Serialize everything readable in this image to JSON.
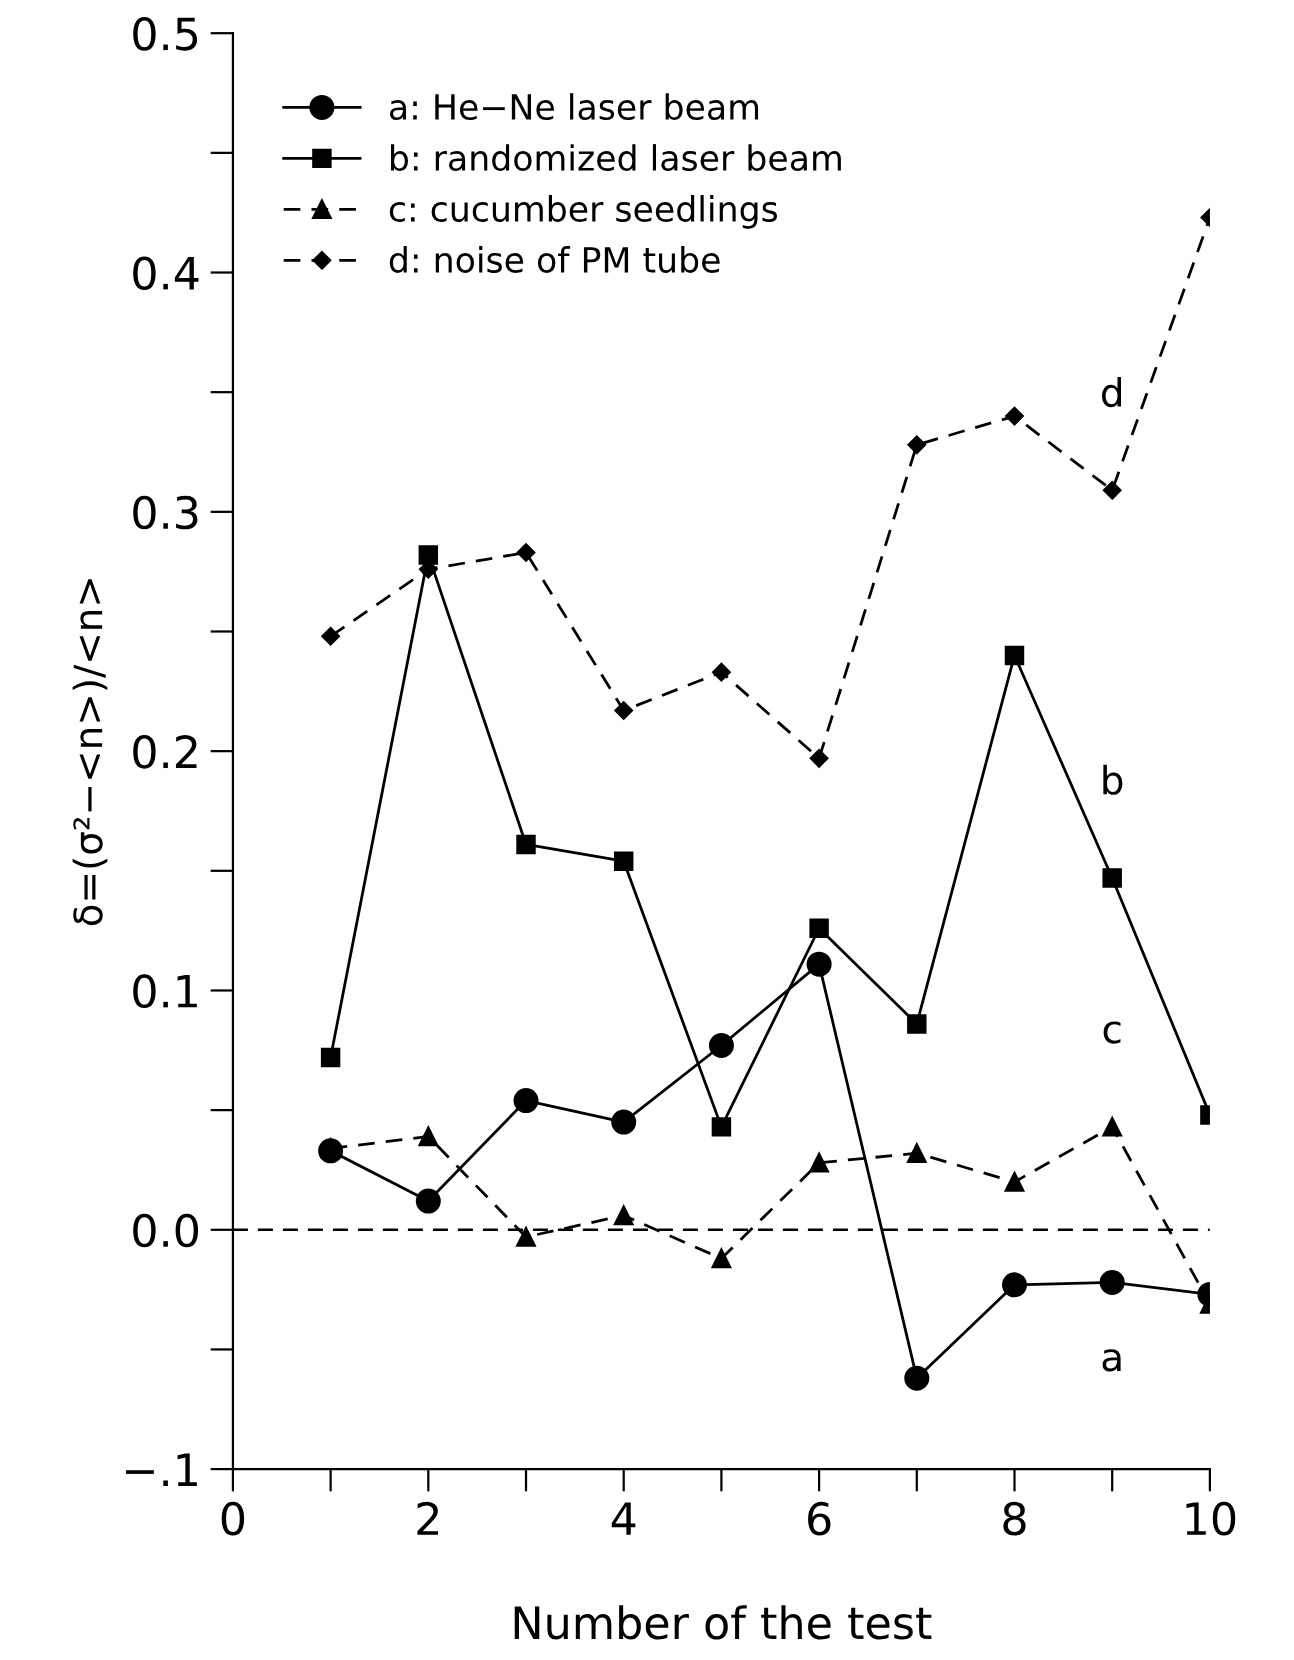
{
  "chart_data": {
    "type": "line",
    "xlabel": "Number of the test",
    "ylabel": "δ=(σ²−<n>)/<n>",
    "x": [
      1,
      2,
      3,
      4,
      5,
      6,
      7,
      8,
      9,
      10
    ],
    "series": [
      {
        "name": "a: He−Ne laser beam",
        "color": "#000000",
        "marker": "circle",
        "line_style": "solid",
        "values": [
          0.033,
          0.012,
          0.054,
          0.045,
          0.077,
          0.111,
          -0.062,
          -0.023,
          -0.022,
          -0.027
        ]
      },
      {
        "name": "b: randomized laser beam",
        "color": "#000000",
        "marker": "square",
        "line_style": "solid",
        "values": [
          0.072,
          0.282,
          0.161,
          0.154,
          0.043,
          0.126,
          0.086,
          0.24,
          0.147,
          0.048
        ]
      },
      {
        "name": "c: cucumber seedlings",
        "color": "#000000",
        "marker": "triangle",
        "line_style": "dashed",
        "values": [
          0.034,
          0.039,
          -0.003,
          0.006,
          -0.012,
          0.028,
          0.032,
          0.02,
          0.043,
          -0.031
        ]
      },
      {
        "name": "d: noise of PM tube",
        "color": "#000000",
        "marker": "diamond",
        "line_style": "dashed",
        "values": [
          0.248,
          0.276,
          0.283,
          0.217,
          0.233,
          0.197,
          0.328,
          0.34,
          0.309,
          0.423
        ]
      }
    ],
    "xlim": [
      0,
      10
    ],
    "ylim": [
      -0.1,
      0.5
    ],
    "xticks": [
      0,
      {
        "value": 1,
        "label": null
      },
      2,
      {
        "value": 3,
        "label": null
      },
      4,
      {
        "value": 5,
        "label": null
      },
      6,
      {
        "value": 7,
        "label": null
      },
      8,
      {
        "value": 9,
        "label": null
      },
      10
    ],
    "yticks": [
      {
        "value": -0.1,
        "label": "−.1"
      },
      {
        "value": -0.05,
        "label": null
      },
      {
        "value": 0,
        "label": "0.0"
      },
      {
        "value": 0.05,
        "label": null
      },
      0.1,
      {
        "value": 0.15,
        "label": null
      },
      0.2,
      {
        "value": 0.25,
        "label": null
      },
      0.3,
      {
        "value": 0.35,
        "label": null
      },
      0.4,
      {
        "value": 0.45,
        "label": null
      },
      0.5
    ],
    "ref_lines": [
      {
        "axis": "y",
        "value": 0,
        "line_style": "dashed",
        "color": "#000000"
      }
    ],
    "annotations": [
      "a",
      "b",
      "c",
      "d"
    ],
    "legend": "top left",
    "grid": false
  }
}
